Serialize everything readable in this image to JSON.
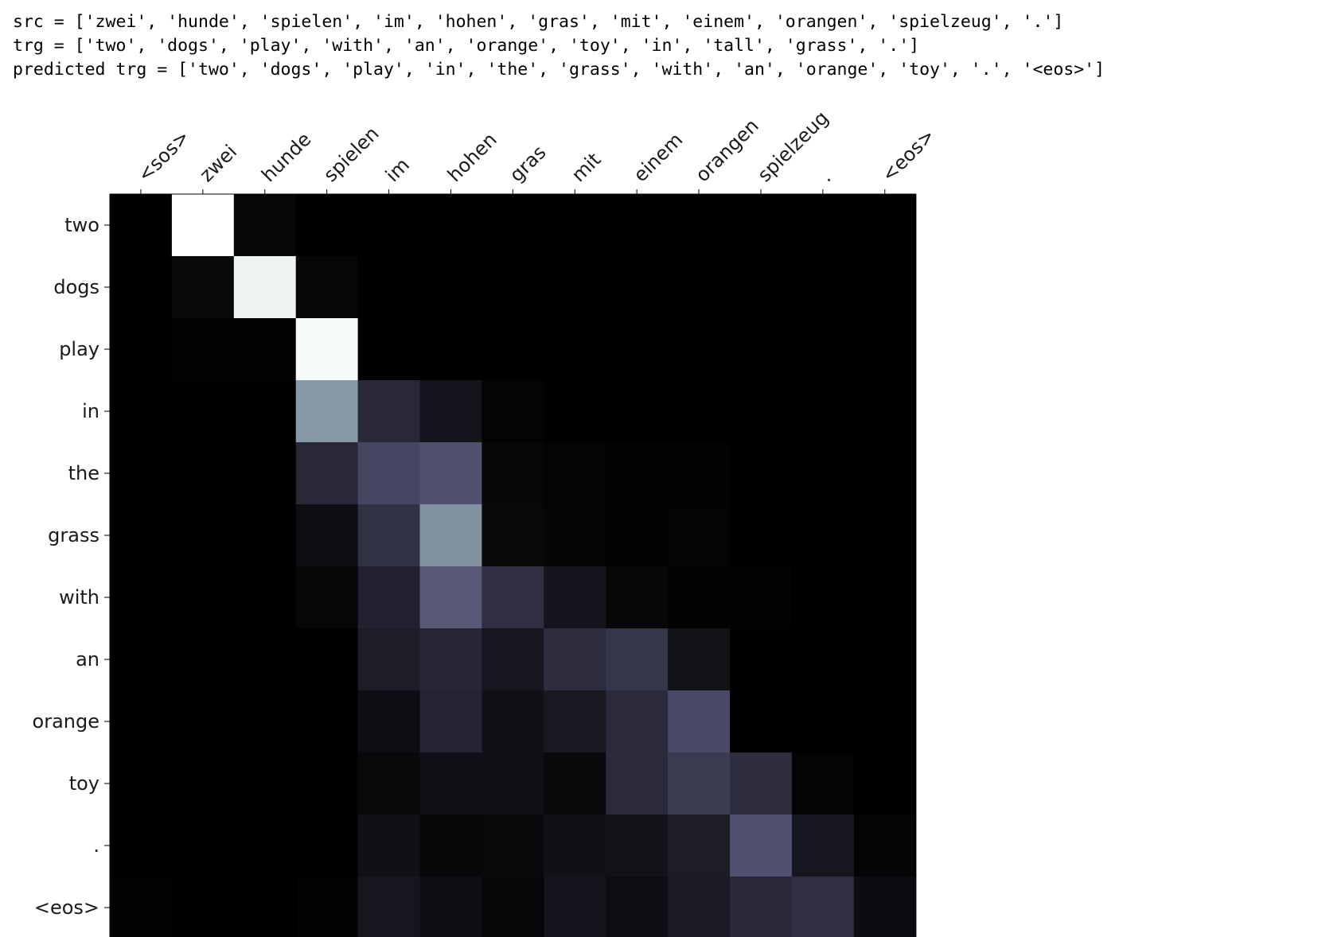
{
  "output_lines": {
    "src": "src = ['zwei', 'hunde', 'spielen', 'im', 'hohen', 'gras', 'mit', 'einem', 'orangen', 'spielzeug', '.']",
    "trg": "trg = ['two', 'dogs', 'play', 'with', 'an', 'orange', 'toy', 'in', 'tall', 'grass', '.']",
    "predicted": "predicted trg = ['two', 'dogs', 'play', 'in', 'the', 'grass', 'with', 'an', 'orange', 'toy', '.', '<eos>']"
  },
  "chart_data": {
    "type": "heatmap",
    "colormap": "bone",
    "x": [
      "<sos>",
      "zwei",
      "hunde",
      "spielen",
      "im",
      "hohen",
      "gras",
      "mit",
      "einem",
      "orangen",
      "spielzeug",
      ".",
      "<eos>"
    ],
    "y": [
      "two",
      "dogs",
      "play",
      "in",
      "the",
      "grass",
      "with",
      "an",
      "orange",
      "toy",
      ".",
      "<eos>"
    ],
    "values": [
      [
        0.0,
        1.0,
        0.03,
        0.0,
        0.0,
        0.0,
        0.0,
        0.0,
        0.0,
        0.0,
        0.0,
        0.0,
        0.0
      ],
      [
        0.0,
        0.04,
        0.95,
        0.03,
        0.0,
        0.0,
        0.0,
        0.0,
        0.0,
        0.0,
        0.0,
        0.0,
        0.0
      ],
      [
        0.0,
        0.01,
        0.01,
        0.98,
        0.0,
        0.0,
        0.0,
        0.0,
        0.0,
        0.0,
        0.0,
        0.0,
        0.0
      ],
      [
        0.0,
        0.0,
        0.0,
        0.6,
        0.18,
        0.09,
        0.02,
        0.0,
        0.0,
        0.0,
        0.0,
        0.0,
        0.0
      ],
      [
        0.0,
        0.0,
        0.0,
        0.18,
        0.32,
        0.36,
        0.03,
        0.02,
        0.01,
        0.01,
        0.0,
        0.0,
        0.0
      ],
      [
        0.0,
        0.0,
        0.0,
        0.06,
        0.22,
        0.58,
        0.04,
        0.02,
        0.01,
        0.02,
        0.0,
        0.0,
        0.0
      ],
      [
        0.0,
        0.0,
        0.0,
        0.03,
        0.15,
        0.39,
        0.21,
        0.09,
        0.03,
        0.01,
        0.01,
        0.0,
        0.0
      ],
      [
        0.0,
        0.0,
        0.0,
        0.0,
        0.13,
        0.17,
        0.1,
        0.2,
        0.24,
        0.08,
        0.0,
        0.0,
        0.0
      ],
      [
        0.0,
        0.0,
        0.0,
        0.0,
        0.06,
        0.16,
        0.07,
        0.11,
        0.19,
        0.33,
        0.0,
        0.0,
        0.0
      ],
      [
        0.0,
        0.0,
        0.0,
        0.0,
        0.04,
        0.07,
        0.07,
        0.04,
        0.19,
        0.26,
        0.2,
        0.02,
        0.0
      ],
      [
        0.0,
        0.0,
        0.0,
        0.0,
        0.07,
        0.03,
        0.04,
        0.07,
        0.08,
        0.13,
        0.36,
        0.1,
        0.02
      ],
      [
        0.01,
        0.0,
        0.0,
        0.01,
        0.1,
        0.06,
        0.03,
        0.09,
        0.06,
        0.12,
        0.18,
        0.21,
        0.05
      ]
    ],
    "vmin": 0,
    "vmax": 1,
    "grid": false,
    "legend": "none",
    "title": "",
    "xlabel": "",
    "ylabel": ""
  }
}
